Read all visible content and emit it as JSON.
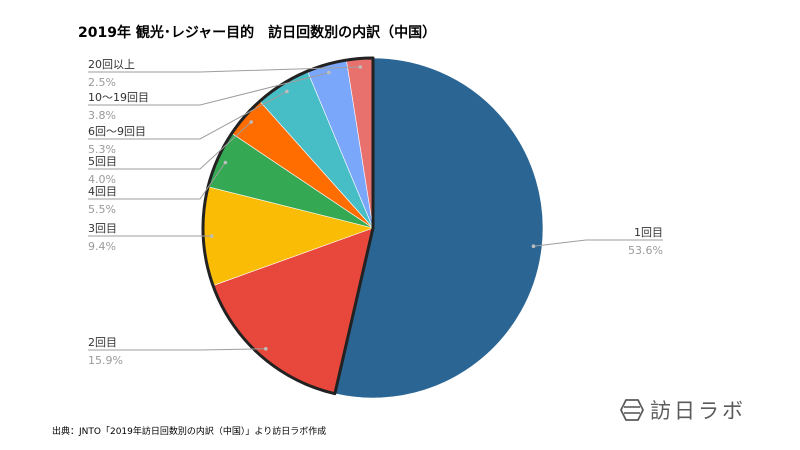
{
  "title": "2019年 観光･レジャー目的　訪日回数別の内訳（中国）",
  "source_note": "出典：JNTO「2019年訪日回数別の内訳（中国）」より訪日ラボ作成",
  "brand": {
    "name": "訪日ラボ",
    "icon": "hexagon-logo-icon"
  },
  "chart_data": {
    "type": "pie",
    "title": "2019年 観光･レジャー目的　訪日回数別の内訳（中国）",
    "start_angle_deg": 0,
    "direction": "clockwise",
    "slices": [
      {
        "label": "1回目",
        "value": 53.6,
        "value_label": "53.6%",
        "color": "#2a6593"
      },
      {
        "label": "2回目",
        "value": 15.9,
        "value_label": "15.9%",
        "color": "#e8473b"
      },
      {
        "label": "3回目",
        "value": 9.4,
        "value_label": "9.4%",
        "color": "#fbbc06"
      },
      {
        "label": "4回目",
        "value": 5.5,
        "value_label": "5.5%",
        "color": "#34a853"
      },
      {
        "label": "5回目",
        "value": 4.0,
        "value_label": "4.0%",
        "color": "#ff6d01"
      },
      {
        "label": "6回～9回目",
        "value": 5.3,
        "value_label": "5.3%",
        "color": "#47bdc6"
      },
      {
        "label": "10～19回目",
        "value": 3.8,
        "value_label": "3.8%",
        "color": "#7aa7fa"
      },
      {
        "label": "20回以上",
        "value": 2.5,
        "value_label": "2.5%",
        "color": "#e8716e"
      }
    ],
    "highlighted_group": [
      "2回目",
      "3回目",
      "4回目",
      "5回目",
      "6回～9回目",
      "10～19回目",
      "20回以上"
    ]
  }
}
